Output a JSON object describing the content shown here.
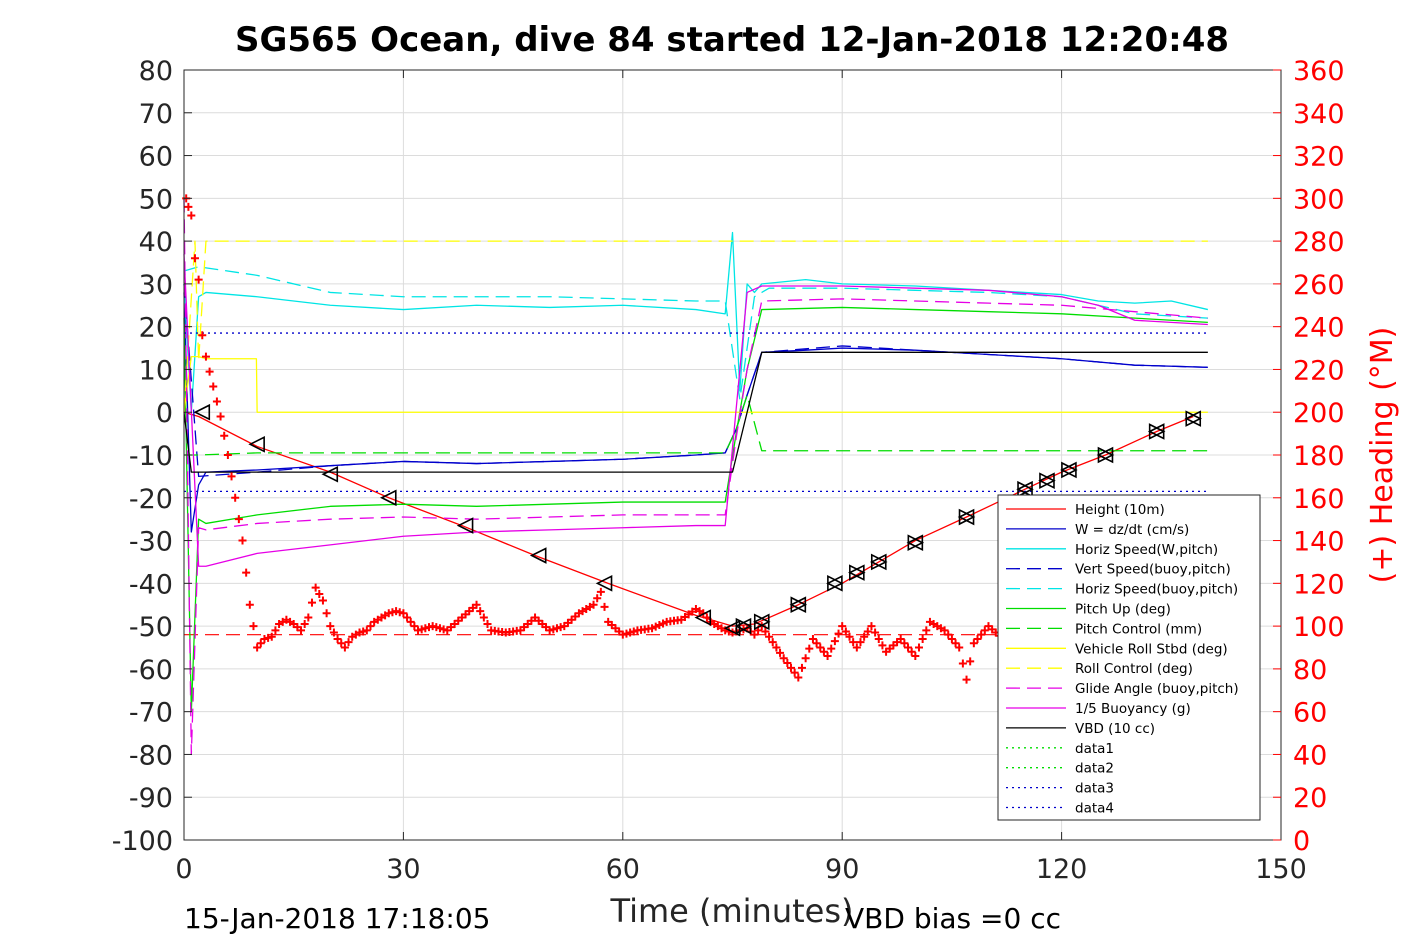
{
  "chart_data": {
    "type": "line",
    "title": "SG565 Ocean, dive 84 started 12-Jan-2018 12:20:48",
    "xlabel": "Time (minutes)",
    "ylabel_right": "(+) Heading (°M)",
    "xlim": [
      0,
      150
    ],
    "ylim_left": [
      -100,
      80
    ],
    "ylim_right": [
      0,
      360
    ],
    "x_ticks": [
      0,
      30,
      60,
      90,
      120,
      150
    ],
    "y_ticks_left": [
      -100,
      -90,
      -80,
      -70,
      -60,
      -50,
      -40,
      -30,
      -20,
      -10,
      0,
      10,
      20,
      30,
      40,
      50,
      60,
      70,
      80
    ],
    "y_ticks_right": [
      0,
      20,
      40,
      60,
      80,
      100,
      120,
      140,
      160,
      180,
      200,
      220,
      240,
      260,
      280,
      300,
      320,
      340,
      360
    ],
    "grid": true,
    "legend_position": "lower-right",
    "footer_left": "15-Jan-2018 17:18:05",
    "footer_right": "VBD bias =0 cc",
    "colors": {
      "heading": "#ff0000",
      "axis_text": "#262626"
    },
    "series": [
      {
        "name": "Height (10m)",
        "color": "#ff0000",
        "style": "solid",
        "x": [
          0,
          2,
          10,
          20,
          28,
          38,
          48,
          58,
          70,
          75,
          78,
          84,
          90,
          95,
          100,
          107,
          115,
          120,
          126,
          133,
          138
        ],
        "y": [
          0,
          -1,
          -8,
          -14,
          -20,
          -26.5,
          -33.5,
          -40,
          -47.5,
          -50,
          -49.5,
          -45,
          -40,
          -35,
          -30,
          -24.5,
          -18,
          -14,
          -10,
          -4.5,
          -1
        ]
      },
      {
        "name": "W = dz/dt (cm/s)",
        "color": "#0000cc",
        "style": "solid",
        "x": [
          0,
          1,
          2,
          3,
          10,
          20,
          30,
          40,
          50,
          60,
          70,
          74,
          75.5,
          77,
          79,
          85,
          90,
          100,
          110,
          120,
          130,
          140
        ],
        "y": [
          28,
          -28,
          -17,
          -14,
          -13.5,
          -12.5,
          -11.5,
          -12,
          -11.5,
          -11,
          -10,
          -9.5,
          -4,
          4,
          14,
          14.5,
          15,
          14.5,
          13.5,
          12.5,
          11,
          10.5
        ]
      },
      {
        "name": "Horiz Speed(W,pitch)",
        "color": "#00e5e5",
        "style": "solid",
        "x": [
          0,
          1,
          2,
          3,
          10,
          20,
          30,
          40,
          50,
          60,
          70,
          74,
          75,
          76,
          77,
          78,
          79,
          85,
          90,
          100,
          110,
          120,
          125,
          130,
          135,
          140
        ],
        "y": [
          30,
          0,
          27,
          28,
          27,
          25,
          24,
          25,
          24.5,
          25,
          24,
          23,
          42,
          5,
          30,
          28,
          30,
          31,
          30,
          29.5,
          28.5,
          27.5,
          26,
          25.5,
          26,
          24
        ]
      },
      {
        "name": "Vert Speed(buoy,pitch)",
        "color": "#0000cc",
        "style": "dashed",
        "x": [
          0,
          2,
          10,
          20,
          30,
          40,
          50,
          60,
          70,
          74,
          75.5,
          77,
          79,
          90,
          100,
          110,
          120,
          130,
          140
        ],
        "y": [
          30,
          -15,
          -14,
          -12.5,
          -11.5,
          -12,
          -11.5,
          -11,
          -10,
          -9.5,
          -4,
          4,
          14,
          15.5,
          14.5,
          13.5,
          12.5,
          11,
          10.5
        ]
      },
      {
        "name": "Horiz Speed(buoy,pitch)",
        "color": "#00e5e5",
        "style": "dashed",
        "x": [
          0,
          2,
          10,
          20,
          30,
          40,
          50,
          60,
          70,
          74,
          76,
          78,
          80,
          90,
          100,
          110,
          120,
          130,
          140
        ],
        "y": [
          33,
          34,
          32,
          28,
          27,
          27,
          27,
          26.5,
          26,
          26,
          3,
          27,
          29,
          29,
          28.5,
          28,
          27,
          23,
          22
        ]
      },
      {
        "name": "Pitch Up (deg)",
        "color": "#00dd00",
        "style": "solid",
        "x": [
          0,
          1,
          2,
          3,
          10,
          20,
          30,
          40,
          50,
          60,
          70,
          74,
          75.5,
          77,
          79,
          90,
          100,
          110,
          120,
          130,
          140
        ],
        "y": [
          22,
          -70,
          -25,
          -26,
          -24,
          -22,
          -21.5,
          -22,
          -21.5,
          -21,
          -21,
          -21,
          -5,
          10,
          24,
          24.5,
          24,
          23.5,
          23,
          22,
          21
        ]
      },
      {
        "name": "Pitch Control (mm)",
        "color": "#00dd00",
        "style": "dashed",
        "x": [
          0,
          2,
          10,
          74,
          75.5,
          77,
          79,
          140
        ],
        "y": [
          -10,
          -10,
          -9.5,
          -9.5,
          -4,
          4,
          -9,
          -9
        ]
      },
      {
        "name": "Vehicle Roll Stbd (deg)",
        "color": "#ffff00",
        "style": "solid",
        "x": [
          0,
          1,
          2,
          3,
          9.9,
          10,
          19,
          20,
          140
        ],
        "y": [
          0,
          13,
          13,
          12.5,
          12.5,
          0,
          0,
          0,
          0
        ]
      },
      {
        "name": "Roll Control (deg)",
        "color": "#ffff00",
        "style": "dashed",
        "x": [
          0,
          1.5,
          2,
          3,
          4,
          30,
          60,
          90,
          120,
          140
        ],
        "y": [
          0,
          40,
          12,
          40,
          40,
          40,
          40,
          40,
          40,
          40
        ]
      },
      {
        "name": "Glide Angle (buoy,pitch)",
        "color": "#e600e6",
        "style": "dashed",
        "x": [
          0,
          1,
          2,
          3,
          10,
          20,
          30,
          40,
          50,
          60,
          70,
          74,
          75.5,
          77,
          79,
          90,
          100,
          110,
          120,
          130,
          140
        ],
        "y": [
          50,
          -80,
          -27,
          -27.5,
          -26,
          -25,
          -24.5,
          -25,
          -24.5,
          -24,
          -24,
          -24,
          -6,
          10,
          26,
          26.5,
          26,
          25.5,
          25,
          23.5,
          22
        ]
      },
      {
        "name": "1/5 Buoyancy (g)",
        "color": "#e600e6",
        "style": "solid",
        "x": [
          0,
          2,
          3,
          10,
          20,
          30,
          40,
          50,
          60,
          70,
          74,
          77,
          79,
          90,
          100,
          110,
          120,
          125,
          130,
          140
        ],
        "y": [
          37,
          -36,
          -36,
          -33,
          -31,
          -29,
          -28,
          -27.5,
          -27,
          -26.5,
          -26.5,
          28,
          29.5,
          29.5,
          29,
          28.5,
          27,
          25,
          21.5,
          20.5
        ]
      },
      {
        "name": "VBD (10 cc)",
        "color": "#000000",
        "style": "solid",
        "x": [
          0,
          1,
          2,
          75,
          79,
          140
        ],
        "y": [
          0,
          -14,
          -14,
          -14,
          14,
          14
        ]
      },
      {
        "name": "data1",
        "color": "#00dd00",
        "style": "dotted",
        "x": [],
        "y": []
      },
      {
        "name": "data2",
        "color": "#00dd00",
        "style": "dotted",
        "x": [],
        "y": []
      },
      {
        "name": "data3",
        "color": "#0000cc",
        "style": "dotted",
        "x": [
          0,
          140
        ],
        "y": [
          18.5,
          18.5
        ]
      },
      {
        "name": "data4",
        "color": "#0000cc",
        "style": "dotted",
        "x": [
          0,
          140
        ],
        "y": [
          -18.5,
          -18.5
        ]
      }
    ],
    "reference_line": {
      "color": "#ff0000",
      "style": "dashed",
      "x": [
        0,
        140
      ],
      "y": [
        -52,
        -52
      ]
    },
    "heading": {
      "color": "#ff0000",
      "marker": "+",
      "axis": "right",
      "x": [
        0.3,
        0.6,
        1,
        1.5,
        2,
        2.5,
        3,
        4,
        5,
        6,
        7,
        8,
        9,
        10,
        11,
        12,
        13,
        14,
        15,
        16,
        17,
        18,
        19,
        20,
        21,
        22,
        23,
        24,
        25,
        26,
        27,
        28,
        29,
        30,
        32,
        34,
        36,
        38,
        40,
        42,
        44,
        46,
        48,
        50,
        52,
        54,
        56,
        57,
        58,
        60,
        62,
        64,
        66,
        68,
        70,
        71,
        72,
        74,
        75,
        76,
        77,
        78,
        79,
        80,
        82,
        84,
        86,
        88,
        90,
        92,
        94,
        96,
        98,
        100,
        102,
        104,
        106,
        107,
        108,
        110,
        112
      ],
      "y": [
        300,
        296,
        292,
        272,
        262,
        236,
        226,
        212,
        198,
        180,
        160,
        140,
        110,
        90,
        94,
        95,
        101,
        103,
        101,
        98,
        104,
        118,
        112,
        100,
        94,
        90,
        95,
        97,
        98,
        102,
        104,
        106,
        107,
        106,
        98,
        100,
        98,
        104,
        110,
        98,
        97,
        98,
        104,
        98,
        100,
        106,
        110,
        116,
        102,
        96,
        98,
        99,
        102,
        103,
        108,
        106,
        102,
        98,
        97,
        98,
        99,
        96,
        100,
        95,
        85,
        76,
        94,
        86,
        100,
        90,
        100,
        88,
        94,
        86,
        102,
        98,
        90,
        75,
        92,
        100,
        94
      ]
    },
    "descent_markers": [
      {
        "x": 2.5,
        "y": 0
      },
      {
        "x": 10,
        "y": -7.5
      },
      {
        "x": 20,
        "y": -14.5
      },
      {
        "x": 28,
        "y": -20
      },
      {
        "x": 38.5,
        "y": -26.5
      },
      {
        "x": 48.5,
        "y": -33.5
      },
      {
        "x": 57.5,
        "y": -40
      },
      {
        "x": 71,
        "y": -48
      },
      {
        "x": 75,
        "y": -50.5
      }
    ],
    "ascent_markers": [
      {
        "x": 76.5,
        "y": -50
      },
      {
        "x": 79,
        "y": -49
      },
      {
        "x": 84,
        "y": -45
      },
      {
        "x": 89,
        "y": -40
      },
      {
        "x": 92,
        "y": -37.5
      },
      {
        "x": 95,
        "y": -35
      },
      {
        "x": 100,
        "y": -30.5
      },
      {
        "x": 107,
        "y": -24.5
      },
      {
        "x": 115,
        "y": -18
      },
      {
        "x": 118,
        "y": -16
      },
      {
        "x": 121,
        "y": -13.5
      },
      {
        "x": 126,
        "y": -10
      },
      {
        "x": 133,
        "y": -4.5
      },
      {
        "x": 138,
        "y": -1.5
      }
    ]
  }
}
